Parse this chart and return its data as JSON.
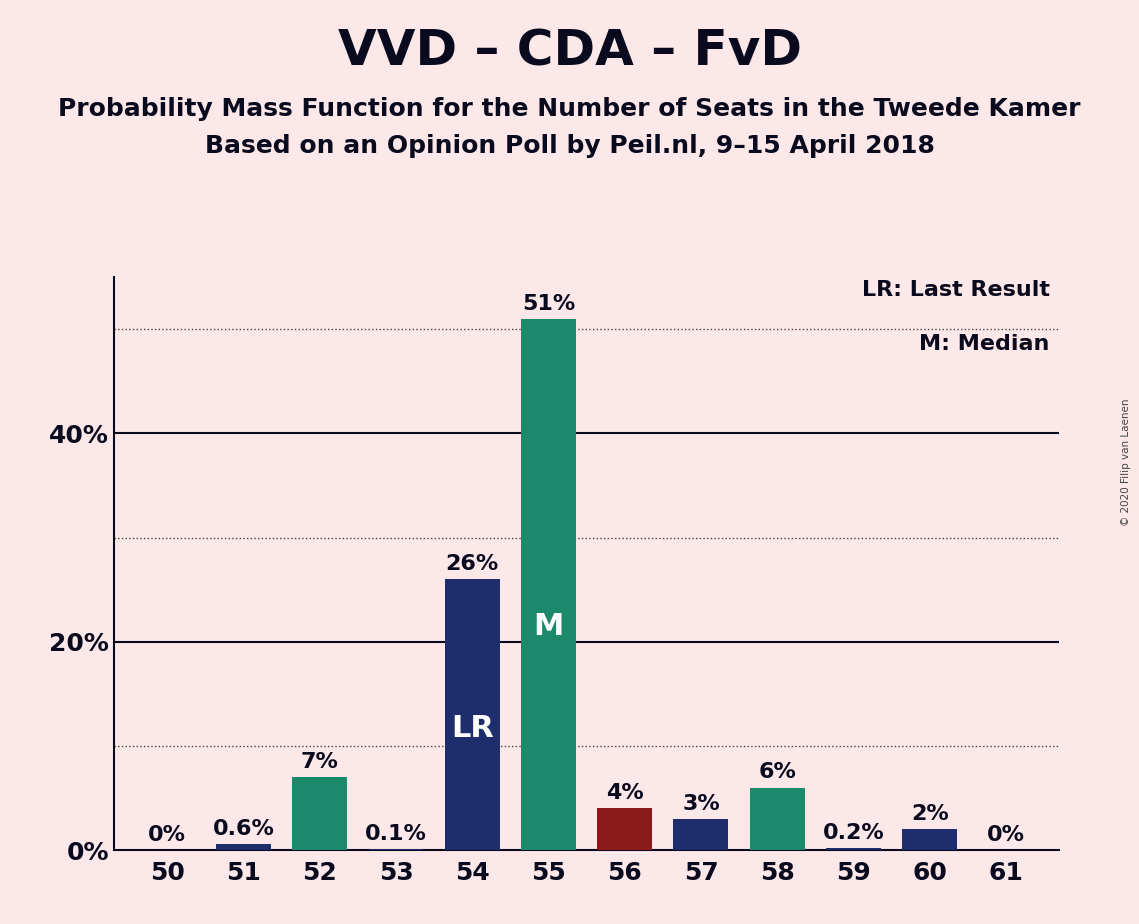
{
  "title": "VVD – CDA – FvD",
  "subtitle1": "Probability Mass Function for the Number of Seats in the Tweede Kamer",
  "subtitle2": "Based on an Opinion Poll by Peil.nl, 9–15 April 2018",
  "copyright": "© 2020 Filip van Laenen",
  "seats": [
    50,
    51,
    52,
    53,
    54,
    55,
    56,
    57,
    58,
    59,
    60,
    61
  ],
  "values": [
    0.0,
    0.6,
    7.0,
    0.1,
    26.0,
    51.0,
    4.0,
    3.0,
    6.0,
    0.2,
    2.0,
    0.0
  ],
  "labels": [
    "0%",
    "0.6%",
    "7%",
    "0.1%",
    "26%",
    "51%",
    "4%",
    "3%",
    "6%",
    "0.2%",
    "2%",
    "0%"
  ],
  "colors": [
    "#1e2d6b",
    "#1e2d6b",
    "#1a8a6a",
    "#1e2d6b",
    "#1e2d6b",
    "#1a8a6a",
    "#8b1a1a",
    "#1e2d6b",
    "#1a8a6a",
    "#1e2d6b",
    "#1e2d6b",
    "#1e2d6b"
  ],
  "background_color": "#fce8e8",
  "ylim": [
    0,
    55
  ],
  "ytick_labeled": [
    0,
    20,
    40
  ],
  "ytick_labeled_texts": [
    "0%",
    "20%",
    "40%"
  ],
  "dotted_yticks": [
    10,
    30,
    50
  ],
  "solid_yticks": [
    20,
    40
  ],
  "legend_lr": "LR: Last Result",
  "legend_m": "M: Median",
  "title_fontsize": 36,
  "subtitle_fontsize": 18,
  "tick_fontsize": 18,
  "label_fontsize": 16,
  "bar_label_fontsize": 22,
  "bar_width": 0.72
}
